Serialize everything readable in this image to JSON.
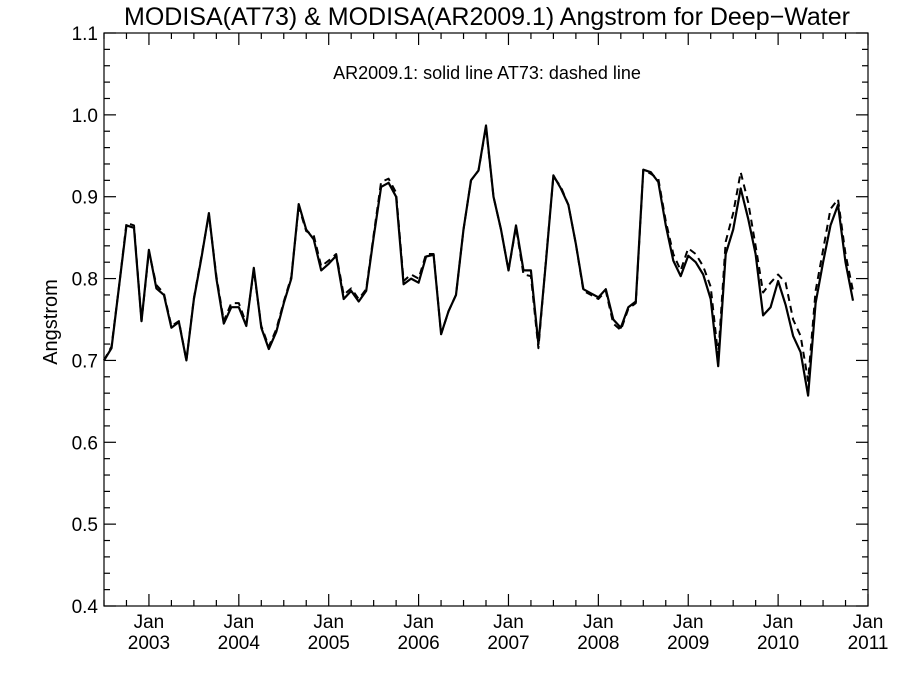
{
  "chart_data": {
    "type": "line",
    "title": "MODISA(AT73) & MODISA(AR2009.1)  Angstrom for Deep−Water",
    "annotation": "AR2009.1: solid line   AT73: dashed line",
    "xlabel": "",
    "ylabel": "Angstrom",
    "ylim": [
      0.4,
      1.1
    ],
    "yticks": [
      "0.4",
      "0.5",
      "0.6",
      "0.7",
      "0.8",
      "0.9",
      "1.0",
      "1.1"
    ],
    "xticks": [
      {
        "month": "Jan",
        "year": "2003"
      },
      {
        "month": "Jan",
        "year": "2004"
      },
      {
        "month": "Jan",
        "year": "2005"
      },
      {
        "month": "Jan",
        "year": "2006"
      },
      {
        "month": "Jan",
        "year": "2007"
      },
      {
        "month": "Jan",
        "year": "2008"
      },
      {
        "month": "Jan",
        "year": "2009"
      },
      {
        "month": "Jan",
        "year": "2010"
      },
      {
        "month": "Jan",
        "year": "2011"
      }
    ],
    "x_start": "2002-07",
    "x_end": "2011-01",
    "series": [
      {
        "name": "AR2009.1",
        "style": "solid",
        "values": [
          0.7,
          0.715,
          0.79,
          0.865,
          0.862,
          0.748,
          0.835,
          0.788,
          0.78,
          0.74,
          0.747,
          0.7,
          0.775,
          0.825,
          0.88,
          0.8,
          0.745,
          0.765,
          0.765,
          0.742,
          0.813,
          0.74,
          0.714,
          0.735,
          0.77,
          0.8,
          0.891,
          0.86,
          0.848,
          0.81,
          0.818,
          0.828,
          0.775,
          0.785,
          0.772,
          0.785,
          0.85,
          0.912,
          0.917,
          0.9,
          0.793,
          0.8,
          0.795,
          0.827,
          0.829,
          0.732,
          0.76,
          0.78,
          0.86,
          0.92,
          0.932,
          0.987,
          0.9,
          0.86,
          0.81,
          0.865,
          0.81,
          0.81,
          0.72,
          0.82,
          0.926,
          0.91,
          0.89,
          0.842,
          0.787,
          0.782,
          0.777,
          0.787,
          0.75,
          0.74,
          0.765,
          0.772,
          0.933,
          0.93,
          0.918,
          0.865,
          0.822,
          0.803,
          0.828,
          0.82,
          0.805,
          0.775,
          0.693,
          0.83,
          0.86,
          0.91,
          0.873,
          0.83,
          0.755,
          0.765,
          0.797,
          0.768,
          0.73,
          0.71,
          0.657,
          0.77,
          0.82,
          0.865,
          0.89,
          0.82,
          0.773
        ]
      },
      {
        "name": "AT73",
        "style": "dashed",
        "values": [
          0.7,
          0.717,
          0.79,
          0.868,
          0.865,
          0.748,
          0.833,
          0.792,
          0.782,
          0.742,
          0.748,
          0.7,
          0.776,
          0.827,
          0.878,
          0.803,
          0.748,
          0.77,
          0.77,
          0.745,
          0.81,
          0.742,
          0.717,
          0.738,
          0.772,
          0.802,
          0.888,
          0.858,
          0.853,
          0.815,
          0.822,
          0.83,
          0.78,
          0.788,
          0.775,
          0.787,
          0.853,
          0.918,
          0.922,
          0.905,
          0.797,
          0.805,
          0.8,
          0.83,
          0.83,
          0.732,
          0.76,
          0.78,
          0.86,
          0.92,
          0.932,
          0.985,
          0.9,
          0.86,
          0.81,
          0.863,
          0.805,
          0.803,
          0.715,
          0.822,
          0.925,
          0.912,
          0.89,
          0.842,
          0.785,
          0.78,
          0.775,
          0.785,
          0.745,
          0.737,
          0.763,
          0.77,
          0.933,
          0.928,
          0.922,
          0.87,
          0.83,
          0.81,
          0.837,
          0.83,
          0.815,
          0.79,
          0.705,
          0.845,
          0.88,
          0.93,
          0.893,
          0.84,
          0.783,
          0.795,
          0.805,
          0.795,
          0.75,
          0.73,
          0.675,
          0.785,
          0.835,
          0.885,
          0.897,
          0.83,
          0.785
        ]
      }
    ]
  }
}
